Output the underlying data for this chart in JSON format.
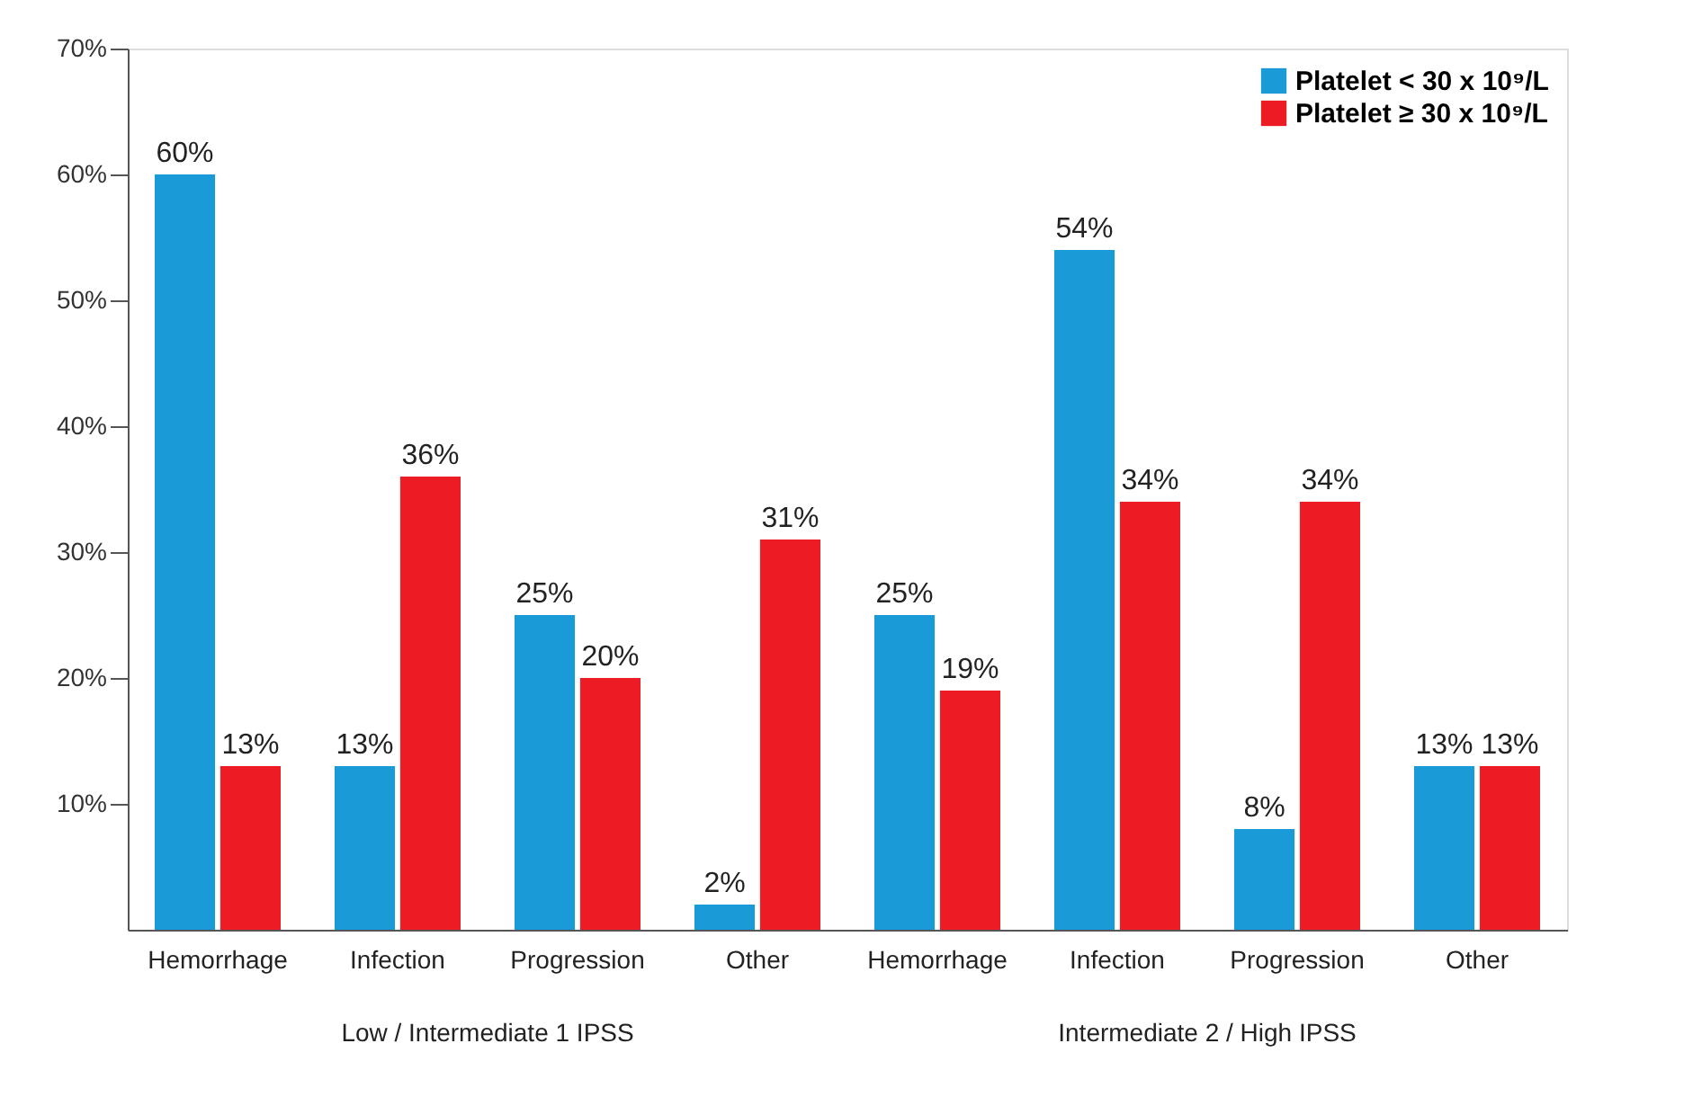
{
  "chart_data": {
    "type": "bar",
    "categories": [
      "Hemorrhage",
      "Infection",
      "Progression",
      "Other",
      "Hemorrhage",
      "Infection",
      "Progression",
      "Other"
    ],
    "series": [
      {
        "name": "Platelet < 30 x 10⁹/L",
        "color": "#1a9ad6",
        "values": [
          60,
          13,
          25,
          2,
          25,
          54,
          8,
          13
        ],
        "value_labels": [
          "60%",
          "13%",
          "25%",
          "2%",
          "25%",
          "54%",
          "8%",
          "13%"
        ]
      },
      {
        "name": "Platelet ≥ 30 x 10⁹/L",
        "color": "#ed1c24",
        "values": [
          13,
          36,
          20,
          31,
          19,
          34,
          34,
          13
        ],
        "value_labels": [
          "13%",
          "36%",
          "20%",
          "31%",
          "19%",
          "34%",
          "34%",
          "13%"
        ]
      }
    ],
    "ylim": [
      0,
      70
    ],
    "yticks": [
      {
        "value": 10,
        "label": "10%"
      },
      {
        "value": 20,
        "label": "20%"
      },
      {
        "value": 30,
        "label": "30%"
      },
      {
        "value": 40,
        "label": "40%"
      },
      {
        "value": 50,
        "label": "50%"
      },
      {
        "value": 60,
        "label": "60%"
      },
      {
        "value": 70,
        "label": "70%"
      }
    ],
    "annotations": [
      "Low / Intermediate 1 IPSS",
      "Intermediate 2 / High IPSS"
    ],
    "legend": "top right",
    "grid": false
  }
}
